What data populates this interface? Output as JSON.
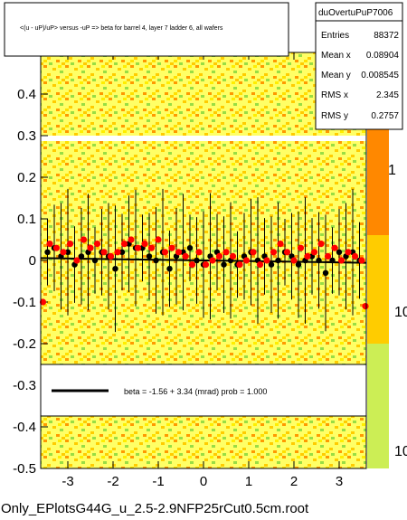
{
  "chart_data": {
    "type": "scatter",
    "title": "<(u - uP)/uP> versus -uP => beta for barrel 4, layer 7 ladder 6, all wafers",
    "xlim": [
      -3.6,
      3.6
    ],
    "ylim": [
      -0.5,
      0.5
    ],
    "x_ticks": [
      -3,
      -2,
      -1,
      0,
      1,
      2,
      3
    ],
    "x_tick_labels": [
      "-3",
      "-2",
      "-1",
      "0",
      "1",
      "2",
      "3"
    ],
    "y_ticks": [
      -0.5,
      -0.4,
      -0.3,
      -0.2,
      -0.1,
      0,
      0.1,
      0.2,
      0.3,
      0.4
    ],
    "y_tick_labels": [
      "-0.5",
      "-0.4",
      "-0.3",
      "-0.2",
      "-0.1",
      "0",
      "0.1",
      "0.2",
      "0.3",
      "0.4"
    ],
    "right_axis_labels": [
      "1",
      "10",
      "10"
    ],
    "stats": {
      "name": "duOvertuPuP7006",
      "rows": [
        {
          "label": "Entries",
          "value": "88372"
        },
        {
          "label": "Mean x",
          "value": "0.08904"
        },
        {
          "label": "Mean y",
          "value": "0.008545"
        },
        {
          "label": "RMS x",
          "value": "2.345"
        },
        {
          "label": "RMS y",
          "value": "0.2757"
        }
      ]
    },
    "legend_text": "beta =   -1.56 +  3.34 (mrad) prob = 1.000",
    "fit_line": {
      "slope": -0.00156,
      "intercept": 0.0
    },
    "series": [
      {
        "marker": "black-circle",
        "color": "#000000",
        "points": [
          [
            -3.45,
            0.02
          ],
          [
            -3.3,
            0.03
          ],
          [
            -3.15,
            0.01
          ],
          [
            -3.0,
            0.02
          ],
          [
            -2.85,
            -0.01
          ],
          [
            -2.7,
            0.01
          ],
          [
            -2.55,
            0.02
          ],
          [
            -2.4,
            0.0
          ],
          [
            -2.25,
            0.02
          ],
          [
            -2.1,
            0.01
          ],
          [
            -1.95,
            -0.02
          ],
          [
            -1.8,
            0.02
          ],
          [
            -1.65,
            0.04
          ],
          [
            -1.5,
            0.03
          ],
          [
            -1.35,
            0.03
          ],
          [
            -1.2,
            0.01
          ],
          [
            -1.05,
            0.0
          ],
          [
            -0.9,
            0.02
          ],
          [
            -0.75,
            -0.02
          ],
          [
            -0.6,
            0.01
          ],
          [
            -0.45,
            0.02
          ],
          [
            -0.3,
            0.03
          ],
          [
            -0.15,
            0.0
          ],
          [
            0.0,
            -0.01
          ],
          [
            0.15,
            0.01
          ],
          [
            0.3,
            0.02
          ],
          [
            0.45,
            -0.01
          ],
          [
            0.6,
            0.0
          ],
          [
            0.75,
            -0.01
          ],
          [
            0.9,
            0.01
          ],
          [
            1.05,
            0.02
          ],
          [
            1.2,
            0.0
          ],
          [
            1.35,
            0.01
          ],
          [
            1.5,
            -0.01
          ],
          [
            1.65,
            0.0
          ],
          [
            1.8,
            0.02
          ],
          [
            1.95,
            0.01
          ],
          [
            2.1,
            -0.01
          ],
          [
            2.25,
            0.0
          ],
          [
            2.4,
            0.01
          ],
          [
            2.55,
            0.0
          ],
          [
            2.7,
            -0.03
          ],
          [
            2.85,
            0.0
          ],
          [
            3.0,
            0.02
          ],
          [
            3.15,
            0.01
          ],
          [
            3.3,
            0.02
          ],
          [
            3.45,
            0.0
          ]
        ]
      },
      {
        "marker": "red-circle",
        "color": "#ff0000",
        "points": [
          [
            -3.55,
            -0.1
          ],
          [
            -3.4,
            0.04
          ],
          [
            -3.25,
            0.03
          ],
          [
            -3.1,
            0.02
          ],
          [
            -2.95,
            0.04
          ],
          [
            -2.8,
            0.0
          ],
          [
            -2.65,
            0.05
          ],
          [
            -2.5,
            0.03
          ],
          [
            -2.35,
            0.04
          ],
          [
            -2.2,
            0.02
          ],
          [
            -2.05,
            0.01
          ],
          [
            -1.9,
            0.02
          ],
          [
            -1.75,
            0.04
          ],
          [
            -1.6,
            0.05
          ],
          [
            -1.45,
            0.03
          ],
          [
            -1.3,
            0.04
          ],
          [
            -1.15,
            0.03
          ],
          [
            -1.0,
            0.05
          ],
          [
            -0.85,
            0.02
          ],
          [
            -0.7,
            0.03
          ],
          [
            -0.55,
            0.02
          ],
          [
            -0.4,
            0.01
          ],
          [
            -0.25,
            -0.01
          ],
          [
            -0.1,
            0.02
          ],
          [
            0.05,
            -0.01
          ],
          [
            0.2,
            0.0
          ],
          [
            0.35,
            0.01
          ],
          [
            0.5,
            0.02
          ],
          [
            0.65,
            0.01
          ],
          [
            0.8,
            -0.01
          ],
          [
            0.95,
            0.0
          ],
          [
            1.1,
            0.02
          ],
          [
            1.25,
            -0.01
          ],
          [
            1.4,
            0.0
          ],
          [
            1.55,
            0.02
          ],
          [
            1.7,
            0.04
          ],
          [
            1.85,
            0.02
          ],
          [
            2.0,
            0.0
          ],
          [
            2.15,
            0.03
          ],
          [
            2.3,
            0.01
          ],
          [
            2.45,
            0.02
          ],
          [
            2.6,
            0.04
          ],
          [
            2.75,
            0.01
          ],
          [
            2.9,
            0.03
          ],
          [
            3.05,
            0.0
          ],
          [
            3.2,
            0.02
          ],
          [
            3.35,
            0.01
          ],
          [
            3.5,
            0.0
          ],
          [
            3.58,
            -0.11
          ]
        ]
      }
    ]
  },
  "footer": {
    "filename": "Only_EPlotsG44G_u_2.5-2.9NFP25rCut0.5cm.root"
  },
  "colors": {
    "frame_bg": "#ffffff",
    "heat_base": "#ffff66",
    "heat_hot": "#ff9900",
    "heat_warm": "#ffcc00",
    "heat_green": "#99dd44",
    "palette_top": "#ff8800",
    "palette_mid": "#ffcc00",
    "palette_low": "#ccee55"
  }
}
